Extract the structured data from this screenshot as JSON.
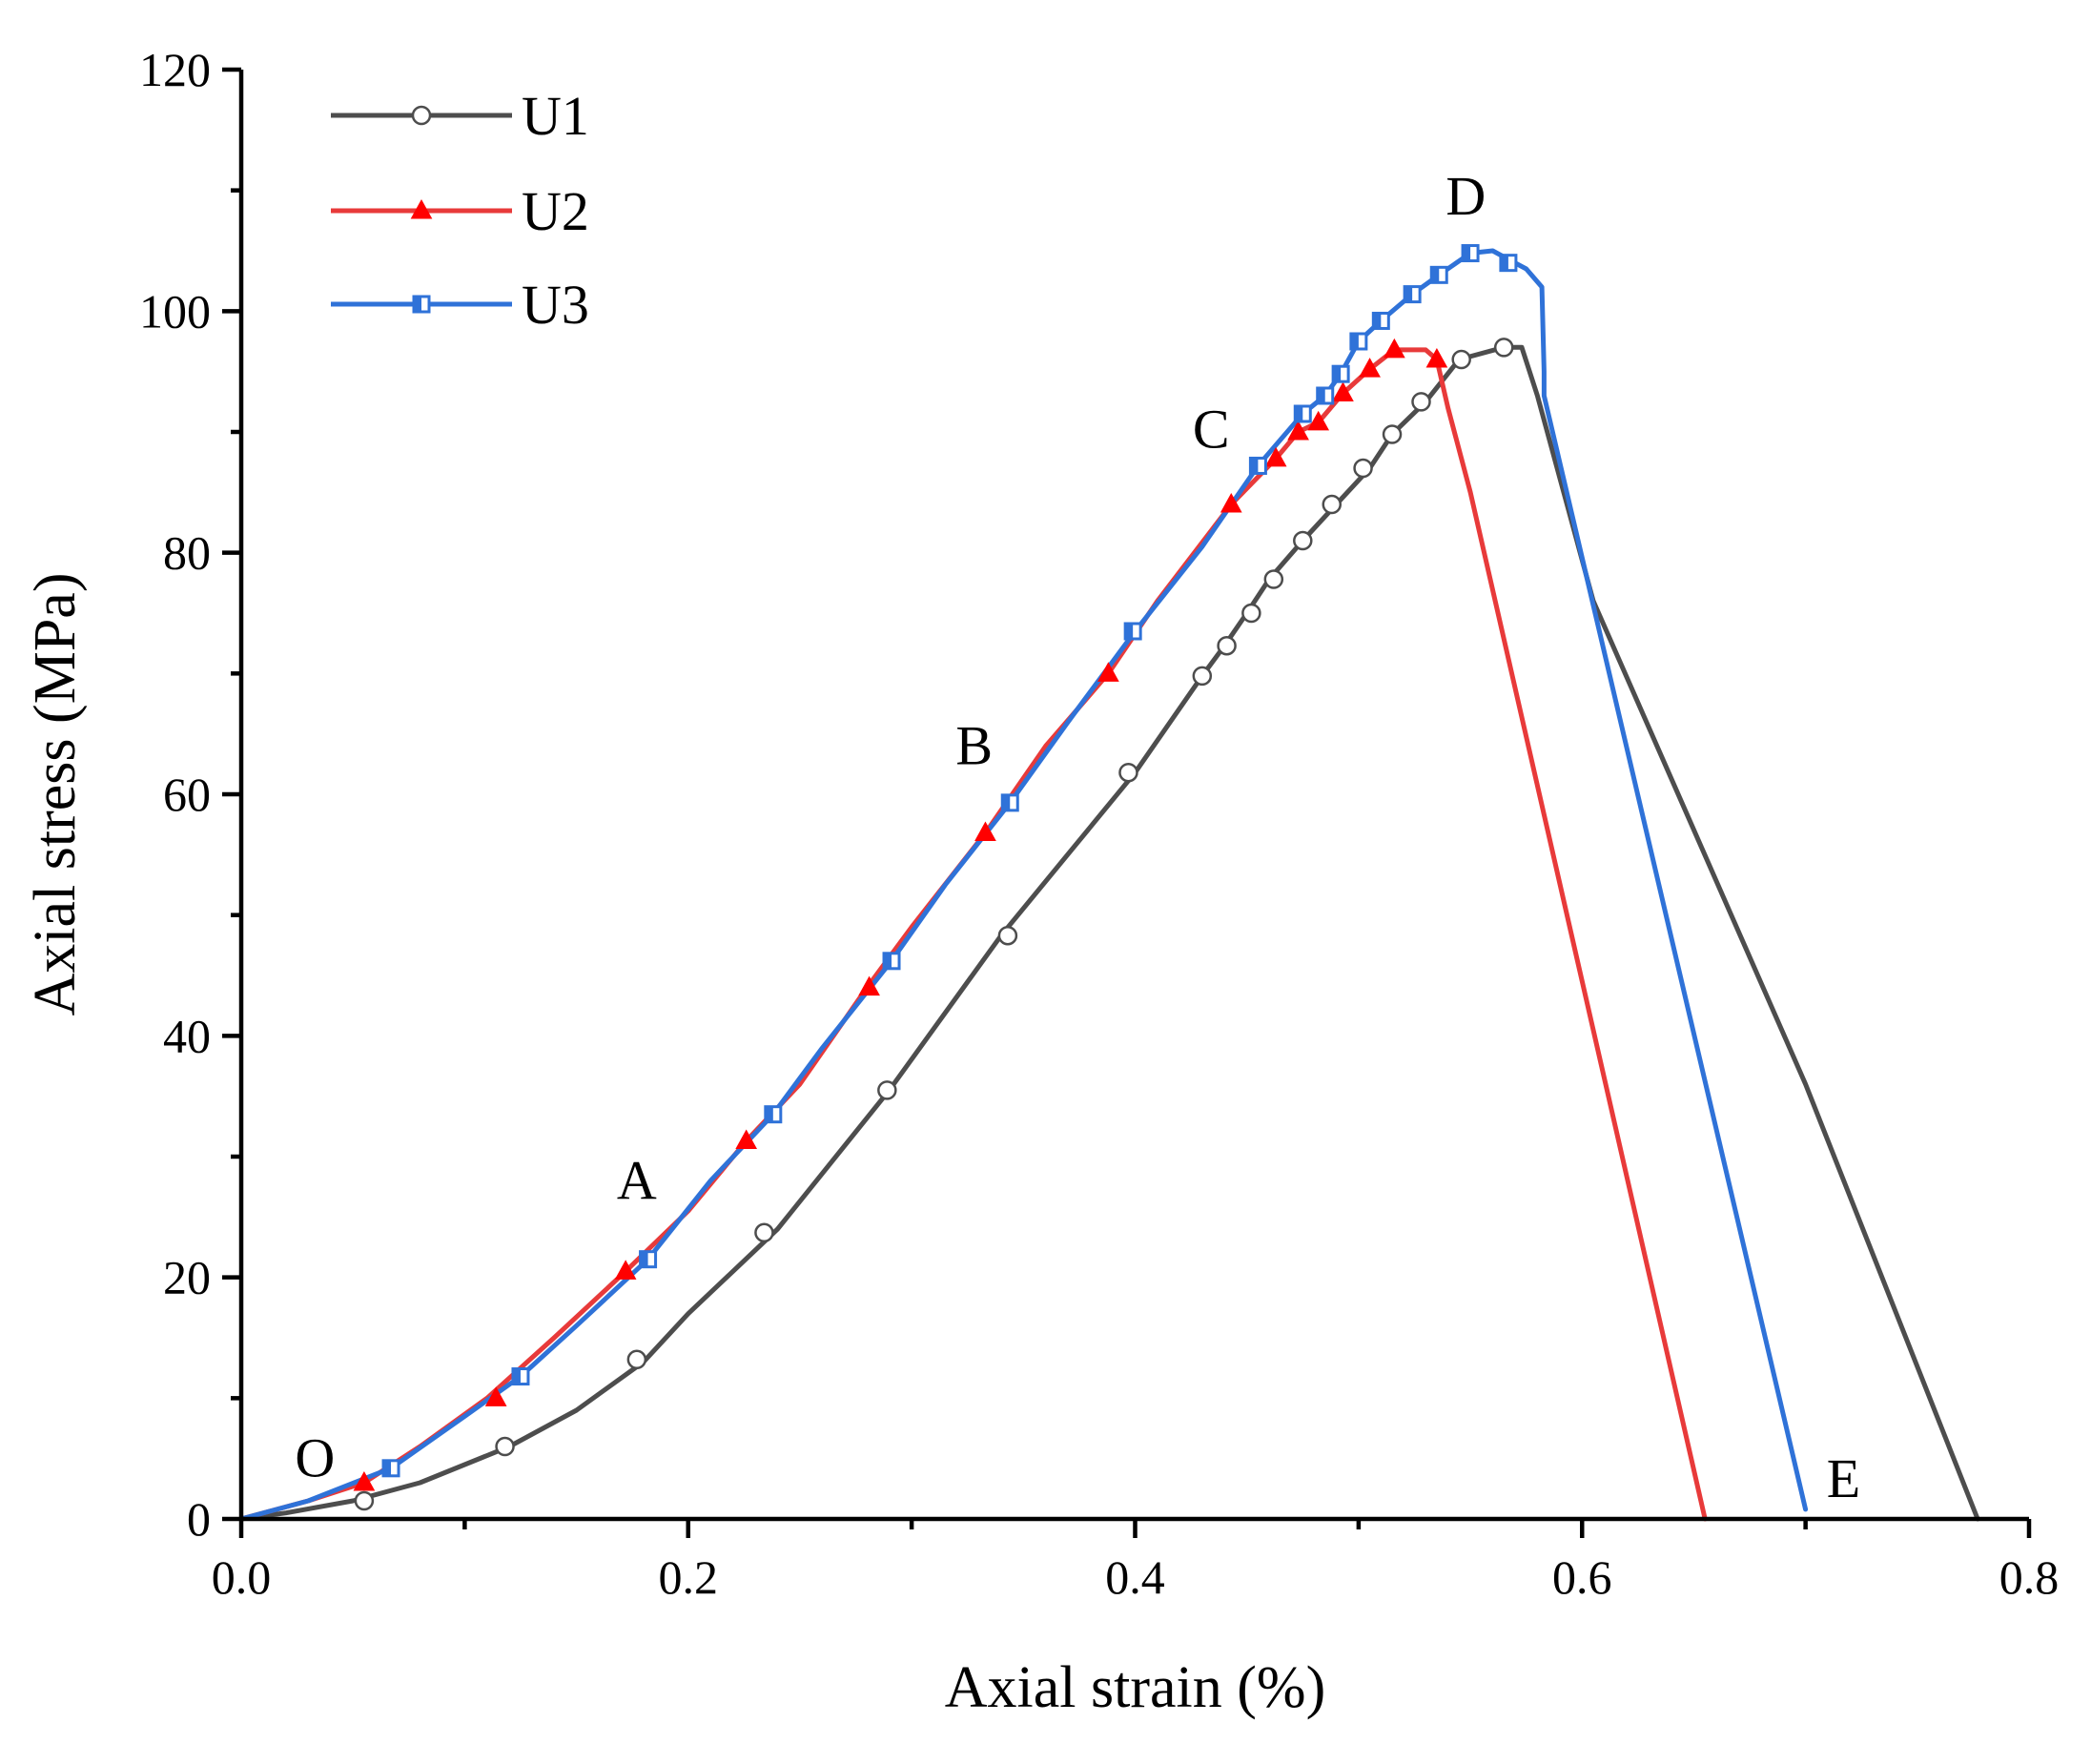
{
  "chart_data": {
    "type": "line",
    "title": "",
    "xlabel": "Axial strain (%)",
    "ylabel": "Axial stress (MPa)",
    "xlim": [
      0.0,
      0.8
    ],
    "ylim": [
      0,
      120
    ],
    "xticks": [
      "0.0",
      "0.2",
      "0.4",
      "0.6",
      "0.8"
    ],
    "yticks": [
      "0",
      "20",
      "40",
      "60",
      "80",
      "100",
      "120"
    ],
    "grid": false,
    "legend_position": "top-left",
    "series": [
      {
        "name": "U1",
        "color": "#4d4d4d",
        "marker": "circle-open",
        "x": [
          0.0,
          0.02,
          0.05,
          0.08,
          0.1,
          0.12,
          0.15,
          0.18,
          0.2,
          0.24,
          0.29,
          0.34,
          0.4,
          0.43,
          0.44,
          0.45,
          0.46,
          0.475,
          0.49,
          0.505,
          0.515,
          0.53,
          0.545,
          0.565,
          0.573,
          0.58,
          0.605,
          0.7,
          0.777
        ],
        "y": [
          0,
          0.5,
          1.5,
          3,
          4.5,
          6,
          9,
          13,
          17,
          24,
          35.5,
          48.3,
          61.8,
          69.8,
          72.3,
          75,
          77.8,
          81,
          84,
          87,
          89.8,
          92.5,
          96,
          97,
          97,
          93,
          76,
          36,
          0
        ],
        "markers_x": [
          0.055,
          0.118,
          0.177,
          0.234,
          0.289,
          0.343,
          0.397,
          0.43,
          0.441,
          0.452,
          0.462,
          0.475,
          0.488,
          0.502,
          0.515,
          0.528,
          0.546,
          0.565
        ],
        "markers_y": [
          1.5,
          6,
          13.2,
          23.7,
          35.5,
          48.3,
          61.8,
          69.8,
          72.3,
          75,
          77.8,
          81,
          84,
          87,
          89.8,
          92.5,
          96,
          97
        ]
      },
      {
        "name": "U2",
        "color": "#e83a3a",
        "marker": "triangle-filled",
        "x": [
          0.0,
          0.03,
          0.055,
          0.08,
          0.11,
          0.14,
          0.172,
          0.2,
          0.226,
          0.25,
          0.28,
          0.3,
          0.333,
          0.36,
          0.388,
          0.41,
          0.443,
          0.463,
          0.473,
          0.482,
          0.493,
          0.505,
          0.516,
          0.53,
          0.535,
          0.54,
          0.55,
          0.655
        ],
        "y": [
          0,
          1.5,
          3,
          6,
          10,
          15,
          20.5,
          25.5,
          31.3,
          36,
          44,
          49,
          56.8,
          64,
          70,
          76,
          84,
          87.8,
          90,
          90.8,
          93.2,
          95.2,
          96.8,
          96.8,
          96,
          92,
          85,
          0
        ],
        "markers_x": [
          0.055,
          0.114,
          0.172,
          0.226,
          0.281,
          0.333,
          0.388,
          0.443,
          0.463,
          0.473,
          0.482,
          0.493,
          0.505,
          0.516,
          0.535
        ],
        "markers_y": [
          3,
          10,
          20.5,
          31.3,
          44,
          56.8,
          70,
          84,
          87.8,
          90,
          90.8,
          93.2,
          95.2,
          96.8,
          96
        ]
      },
      {
        "name": "U3",
        "color": "#2f72d8",
        "marker": "square-half",
        "x": [
          0.0,
          0.03,
          0.067,
          0.1,
          0.125,
          0.15,
          0.182,
          0.21,
          0.238,
          0.26,
          0.291,
          0.315,
          0.344,
          0.37,
          0.4,
          0.43,
          0.455,
          0.475,
          0.485,
          0.492,
          0.5,
          0.51,
          0.524,
          0.536,
          0.55,
          0.56,
          0.567,
          0.575,
          0.582,
          0.583,
          0.583,
          0.7
        ],
        "y": [
          0,
          1.5,
          4.2,
          8.5,
          11.8,
          16,
          21.5,
          28,
          33.5,
          39,
          46.2,
          52.5,
          59.3,
          66,
          73.5,
          80.5,
          87.2,
          91.5,
          93,
          94.8,
          97.5,
          99.2,
          101.4,
          103,
          104.8,
          105,
          104.3,
          103.5,
          102,
          95,
          93,
          0.8
        ],
        "markers_x": [
          0.067,
          0.125,
          0.182,
          0.238,
          0.291,
          0.344,
          0.399,
          0.455,
          0.475,
          0.485,
          0.492,
          0.5,
          0.51,
          0.524,
          0.536,
          0.55,
          0.567
        ],
        "markers_y": [
          4.2,
          11.8,
          21.5,
          33.5,
          46.2,
          59.3,
          73.5,
          87.2,
          91.5,
          93,
          94.8,
          97.5,
          99.2,
          101.4,
          103,
          104.8,
          104
        ]
      }
    ],
    "annotations": [
      {
        "label": "O",
        "x": 0.033,
        "y": 3.5
      },
      {
        "label": "A",
        "x": 0.177,
        "y": 26.5
      },
      {
        "label": "B",
        "x": 0.328,
        "y": 62.5
      },
      {
        "label": "C",
        "x": 0.434,
        "y": 88.7
      },
      {
        "label": "D",
        "x": 0.548,
        "y": 108
      },
      {
        "label": "E",
        "x": 0.717,
        "y": 1.8
      }
    ]
  }
}
